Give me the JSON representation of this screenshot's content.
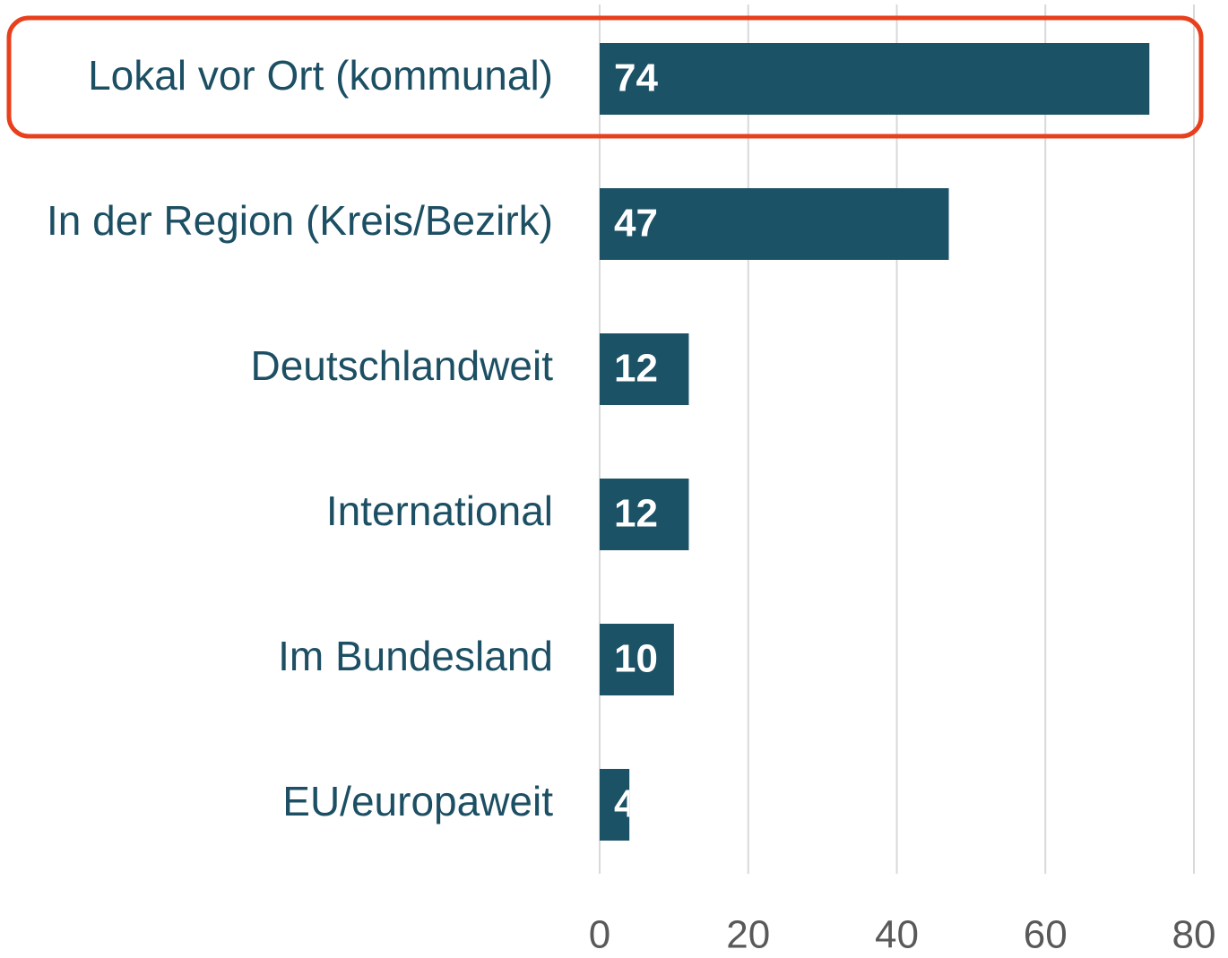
{
  "chart_data": {
    "type": "bar",
    "orientation": "horizontal",
    "categories": [
      "Lokal vor Ort (kommunal)",
      "In der Region (Kreis/Bezirk)",
      "Deutschlandweit",
      "International",
      "Im Bundesland",
      "EU/europaweit"
    ],
    "values": [
      74,
      47,
      12,
      12,
      10,
      4
    ],
    "color": "#1c5266",
    "xlim": [
      0,
      80
    ],
    "xticks": [
      0,
      20,
      40,
      60,
      80
    ],
    "grid": true,
    "highlight": {
      "index": 0,
      "color": "#e8401c"
    }
  }
}
